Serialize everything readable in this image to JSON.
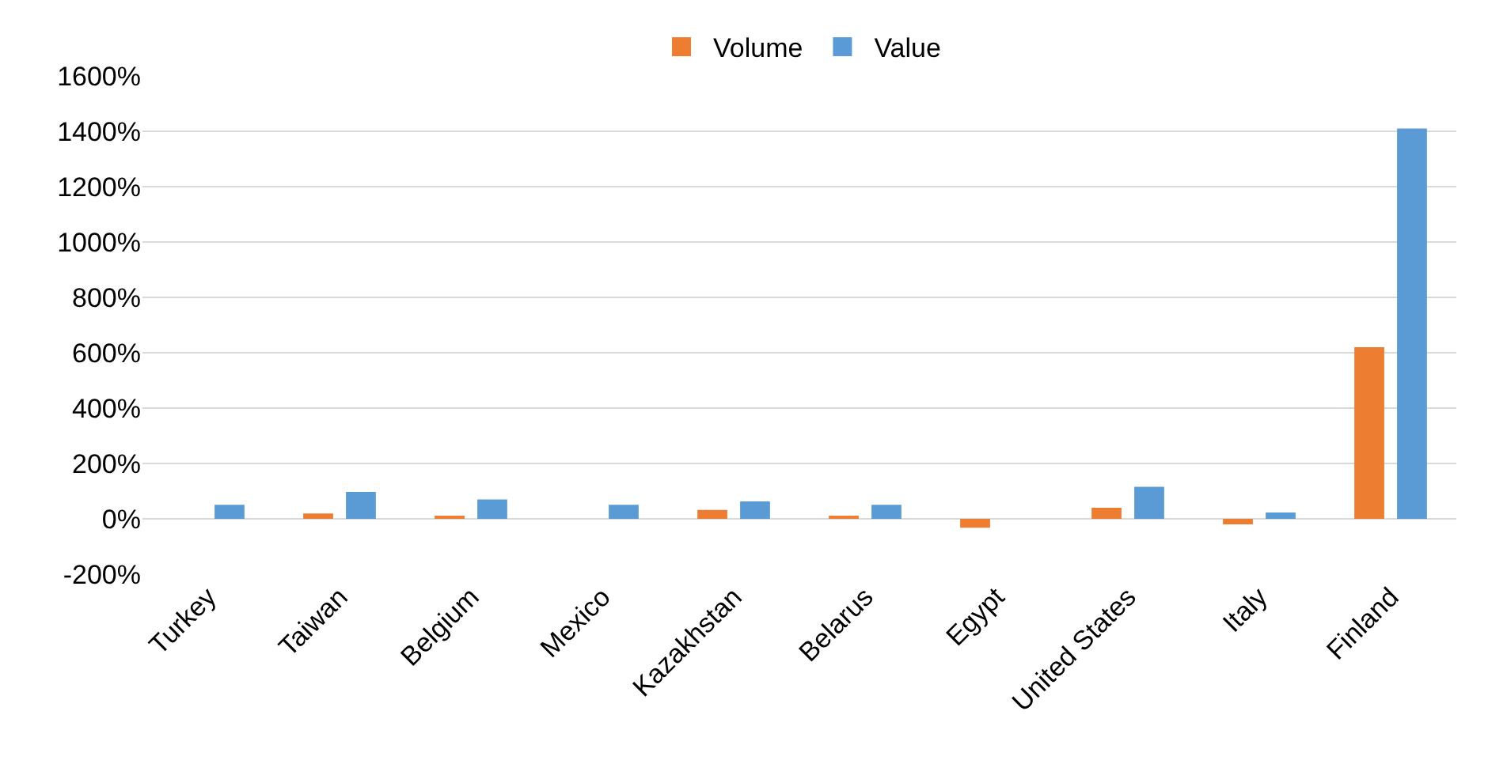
{
  "chart_data": {
    "type": "bar",
    "categories": [
      "Turkey",
      "Taiwan",
      "Belgium",
      "Mexico",
      "Kazakhstan",
      "Belarus",
      "Egypt",
      "United States",
      "Italy",
      "Finland"
    ],
    "series": [
      {
        "name": "Volume",
        "color": "#ed7d31",
        "values": [
          0,
          19,
          11,
          0,
          32,
          10,
          -32,
          40,
          -20,
          620
        ]
      },
      {
        "name": "Value",
        "color": "#5b9bd5",
        "values": [
          51,
          97,
          70,
          51,
          63,
          51,
          0,
          116,
          23,
          1410
        ]
      }
    ],
    "ylim": [
      -200,
      1600
    ],
    "yticks": [
      {
        "value": -200,
        "label": "-200%"
      },
      {
        "value": 0,
        "label": "0%"
      },
      {
        "value": 200,
        "label": "200%"
      },
      {
        "value": 400,
        "label": "400%"
      },
      {
        "value": 600,
        "label": "600%"
      },
      {
        "value": 800,
        "label": "800%"
      },
      {
        "value": 1000,
        "label": "1000%"
      },
      {
        "value": 1200,
        "label": "1200%"
      },
      {
        "value": 1400,
        "label": "1400%"
      },
      {
        "value": 1600,
        "label": "1600%"
      }
    ],
    "grid": "y",
    "legend": "top"
  }
}
